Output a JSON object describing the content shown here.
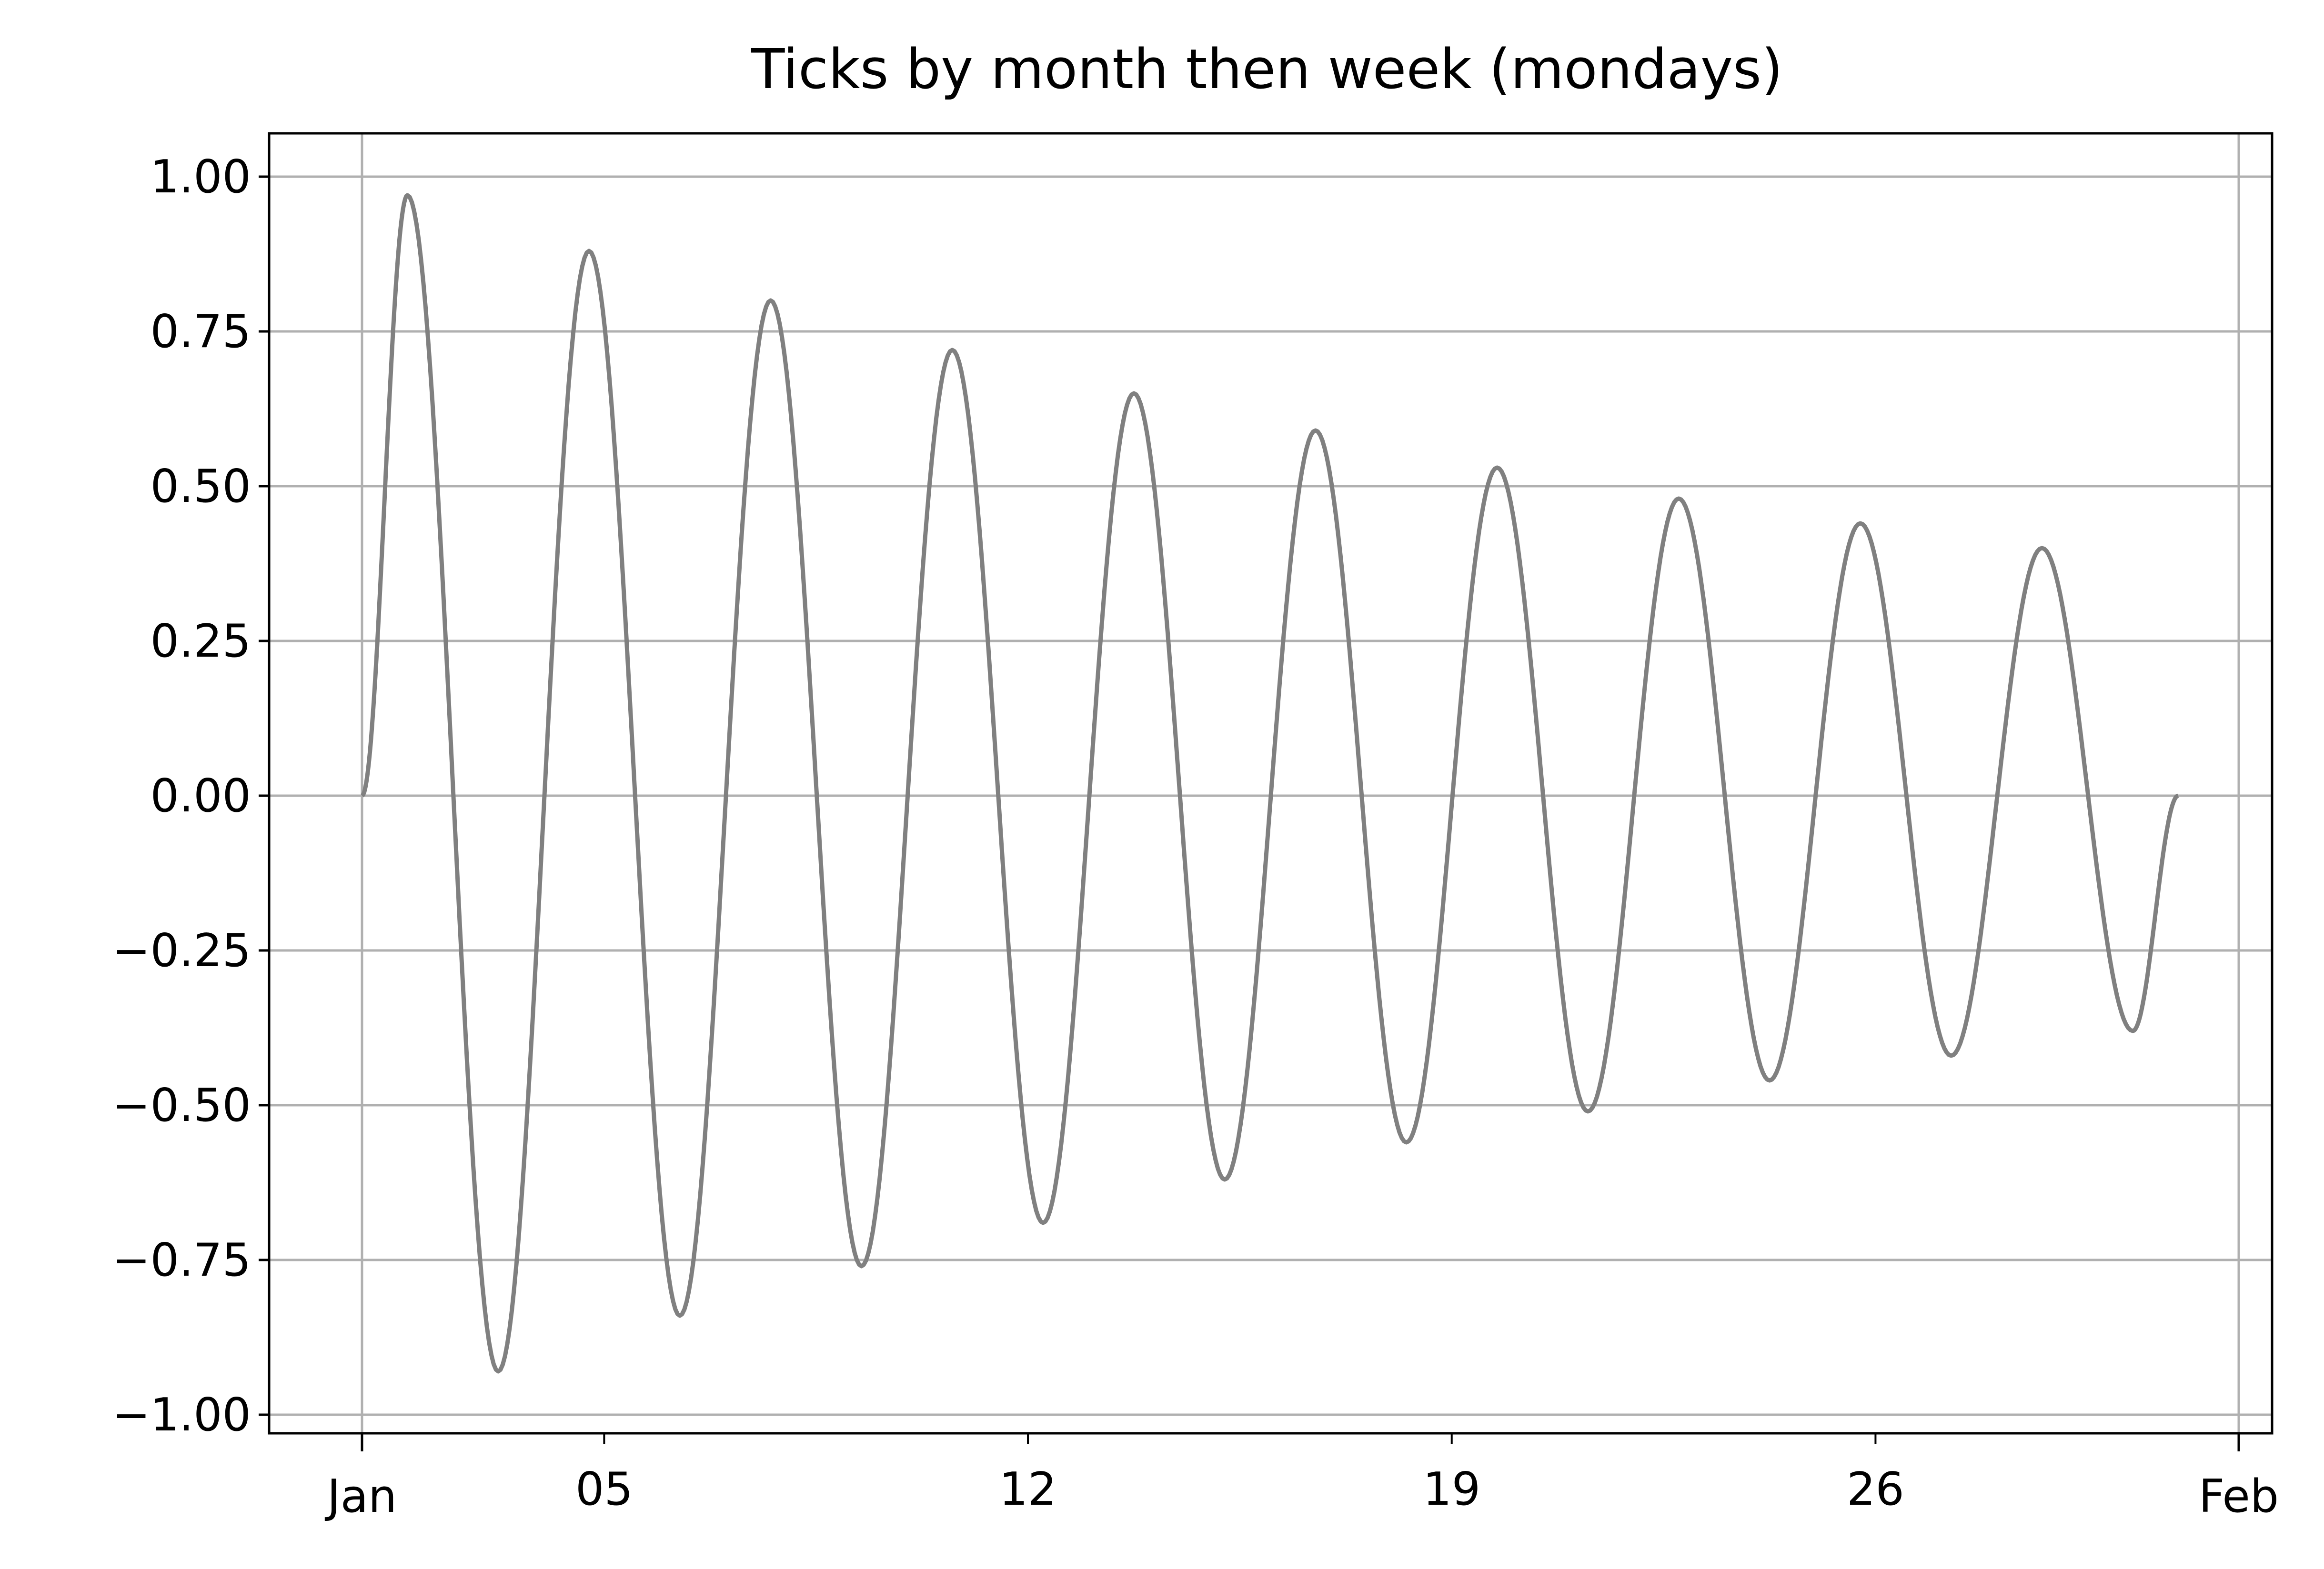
{
  "chart_data": {
    "type": "line",
    "title": "Ticks by month then week (mondays)",
    "xlabel": "",
    "ylabel": "",
    "x_axis": {
      "kind": "date",
      "range": [
        "2018-01-01",
        "2018-02-01"
      ],
      "major_ticks": [
        {
          "date": "2018-01-01",
          "label": "Jan"
        },
        {
          "date": "2018-02-01",
          "label": "Feb"
        }
      ],
      "minor_ticks": [
        {
          "date": "2018-01-01",
          "label": ""
        },
        {
          "date": "2018-01-05",
          "label": "05"
        },
        {
          "date": "2018-01-12",
          "label": "12"
        },
        {
          "date": "2018-01-19",
          "label": "19"
        },
        {
          "date": "2018-01-26",
          "label": "26"
        }
      ]
    },
    "y_axis": {
      "range": [
        -1.03,
        1.07
      ],
      "ticks": [
        1.0,
        0.75,
        0.5,
        0.25,
        0.0,
        -0.25,
        -0.5,
        -0.75,
        -1.0
      ],
      "tick_labels": [
        "1.00",
        "0.75",
        "0.50",
        "0.25",
        "0.00",
        "−0.25",
        "−0.50",
        "−0.75",
        "−1.00"
      ]
    },
    "grid": true,
    "legend": "none",
    "series": [
      {
        "color": "#808080",
        "x_range": [
          "2018-01-01",
          "2018-01-31"
        ],
        "points": [
          {
            "x": "2018-01-01T00:00",
            "y": 0.0
          },
          {
            "x": "2018-01-01T18:00",
            "y": 0.97
          },
          {
            "x": "2018-01-03T06:00",
            "y": -0.93
          },
          {
            "x": "2018-01-04T18:00",
            "y": 0.88
          },
          {
            "x": "2018-01-06T06:00",
            "y": -0.84
          },
          {
            "x": "2018-01-07T18:00",
            "y": 0.8
          },
          {
            "x": "2018-01-09T06:00",
            "y": -0.76
          },
          {
            "x": "2018-01-10T18:00",
            "y": 0.72
          },
          {
            "x": "2018-01-12T06:00",
            "y": -0.69
          },
          {
            "x": "2018-01-13T18:00",
            "y": 0.65
          },
          {
            "x": "2018-01-15T06:00",
            "y": -0.62
          },
          {
            "x": "2018-01-16T18:00",
            "y": 0.59
          },
          {
            "x": "2018-01-18T06:00",
            "y": -0.56
          },
          {
            "x": "2018-01-19T18:00",
            "y": 0.53
          },
          {
            "x": "2018-01-21T06:00",
            "y": -0.51
          },
          {
            "x": "2018-01-22T18:00",
            "y": 0.48
          },
          {
            "x": "2018-01-24T06:00",
            "y": -0.46
          },
          {
            "x": "2018-01-25T18:00",
            "y": 0.44
          },
          {
            "x": "2018-01-27T06:00",
            "y": -0.42
          },
          {
            "x": "2018-01-28T18:00",
            "y": 0.4
          },
          {
            "x": "2018-01-30T06:00",
            "y": -0.38
          },
          {
            "x": "2018-01-31T00:00",
            "y": 0.0
          }
        ]
      }
    ]
  }
}
